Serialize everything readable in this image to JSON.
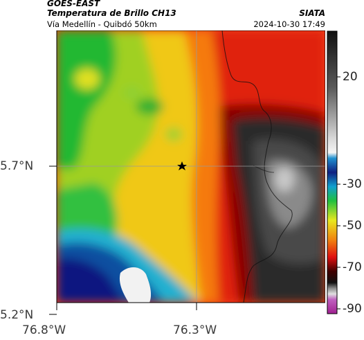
{
  "header": {
    "satellite": "GOES-EAST",
    "product": "Temperatura de Brillo CH13",
    "route": "Vía Medellín - Quibdó 50km",
    "agency": "SIATA",
    "timestamp": "2024-10-30 17:49"
  },
  "map": {
    "lat_ticks": [
      "5.7°N",
      "5.2°N"
    ],
    "lon_ticks": [
      "76.8°W",
      "76.3°W"
    ],
    "marker": "star-marker"
  },
  "colorbar": {
    "ticks": [
      "20",
      "-30",
      "-50",
      "-70",
      "-90"
    ]
  }
}
